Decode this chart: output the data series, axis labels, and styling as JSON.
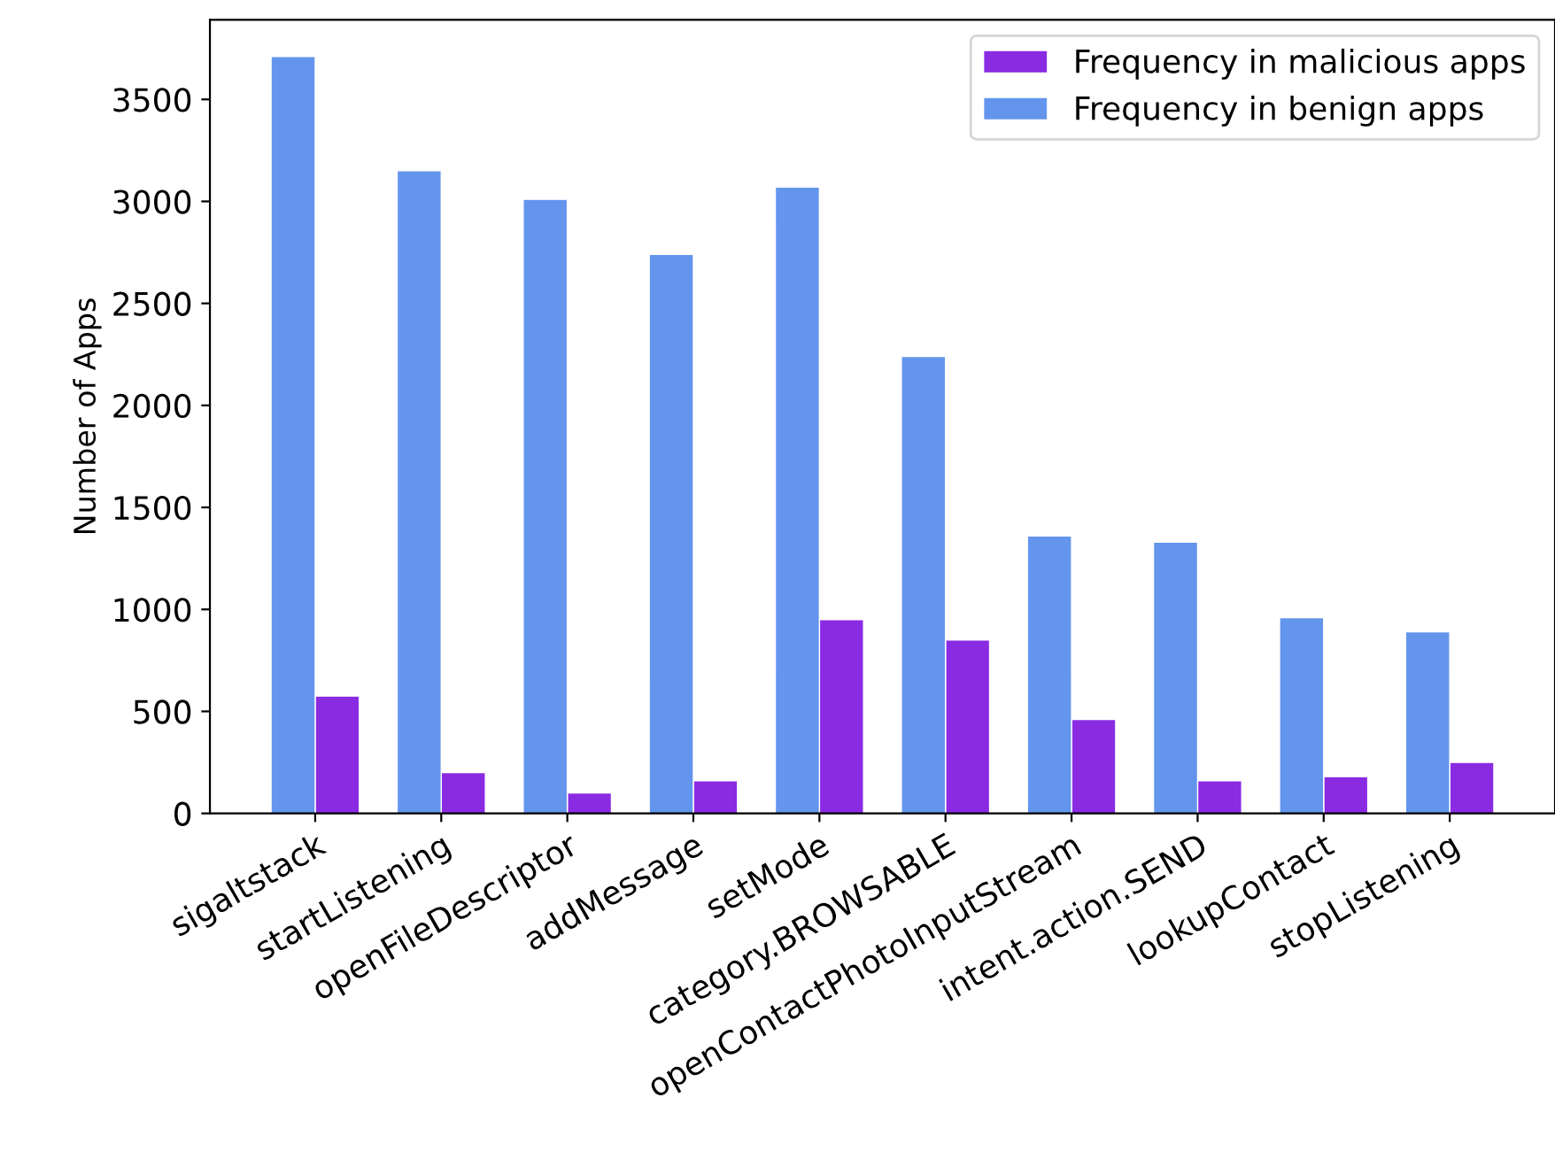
{
  "chart_data": {
    "type": "bar",
    "ylabel": "Number of Apps",
    "categories": [
      "sigaltstack",
      "startListening",
      "openFileDescriptor",
      "addMessage",
      "setMode",
      "category.BROWSABLE",
      "openContactPhotoInputStream",
      "intent.action.SEND",
      "lookupContact",
      "stopListening"
    ],
    "series": [
      {
        "name": "Frequency in malicious apps",
        "color": "#8a2be2",
        "values": [
          575,
          200,
          100,
          160,
          950,
          850,
          460,
          160,
          180,
          250
        ]
      },
      {
        "name": "Frequency in benign apps",
        "color": "#6495ed",
        "values": [
          3710,
          3150,
          3010,
          2740,
          3070,
          2240,
          1360,
          1330,
          960,
          890
        ]
      }
    ],
    "ylim": [
      0,
      3890
    ],
    "yticks": [
      0,
      500,
      1000,
      1500,
      2000,
      2500,
      3000,
      3500
    ],
    "legend": "top right",
    "grid": false
  }
}
